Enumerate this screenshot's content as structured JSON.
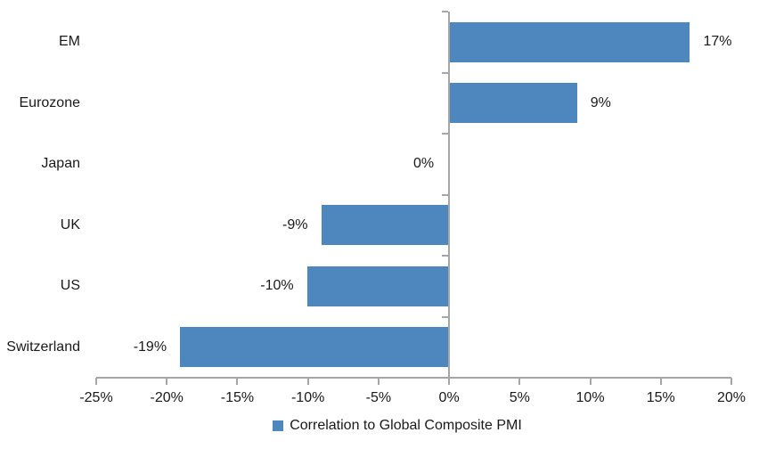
{
  "chart_data": {
    "type": "bar",
    "orientation": "horizontal",
    "title": "",
    "xlabel": "",
    "ylabel": "",
    "categories": [
      "EM",
      "Eurozone",
      "Japan",
      "UK",
      "US",
      "Switzerland"
    ],
    "series": [
      {
        "name": "Correlation to Global Composite PMI",
        "values": [
          17,
          9,
          0,
          -9,
          -10,
          -19
        ],
        "value_labels": [
          "17%",
          "9%",
          "0%",
          "-9%",
          "-10%",
          "-19%"
        ]
      }
    ],
    "xlim": [
      -25,
      20
    ],
    "x_tick_step": 5,
    "x_tick_labels": [
      "-25%",
      "-20%",
      "-15%",
      "-10%",
      "-5%",
      "0%",
      "5%",
      "10%",
      "15%",
      "20%"
    ],
    "grid": false,
    "data_label_position": "outside-end",
    "legend_position": "bottom-center",
    "colors": {
      "bar": "#4e87be",
      "axis": "#a6a6a6",
      "text": "#1a1a1a",
      "background": "#ffffff"
    }
  },
  "legend": {
    "label": "Correlation to Global Composite PMI"
  }
}
